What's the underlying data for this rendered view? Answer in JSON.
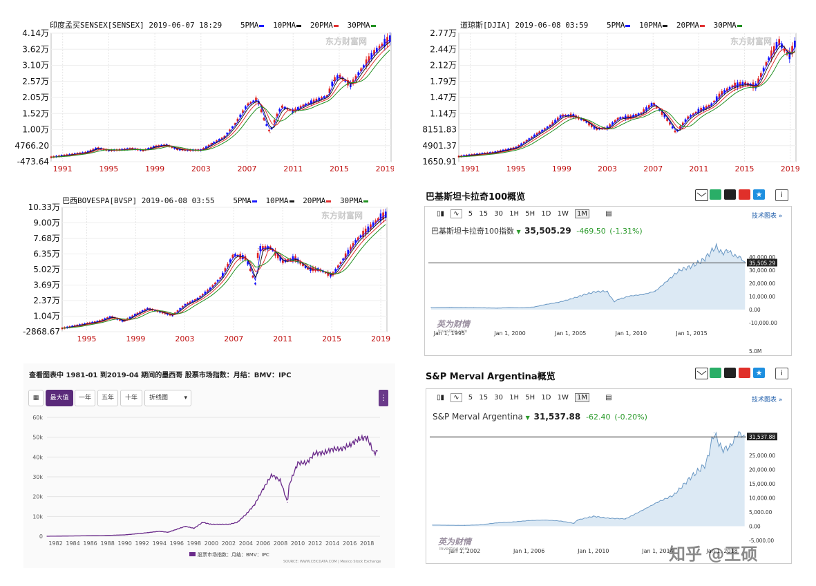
{
  "colors": {
    "ma5": "#1a1aff",
    "ma10": "#1a1a1a",
    "ma20": "#e03030",
    "ma30": "#209020",
    "up": "#e02020",
    "down": "#1010ff",
    "investing_line": "#6a98c4",
    "investing_fill": "#dce9f4",
    "mexico_line": "#6a2a8a",
    "accent_purple": "#6a3a8a"
  },
  "ma_labels": [
    "5PMA",
    "10PMA",
    "20PMA",
    "30PMA"
  ],
  "eastmoney_watermark": "东方财富网",
  "investing_toolbar": [
    "5",
    "15",
    "30",
    "1H",
    "5H",
    "1D",
    "1W",
    "1M"
  ],
  "investing_link": "技术图表 »",
  "investing_watermark": "英为财情",
  "investing_watermark_sub": "Investing.com",
  "zhihu_watermark": "知乎 @王硕",
  "chart_data": [
    {
      "id": "sensex",
      "type": "line",
      "title": "印度孟买SENSEX[SENSEX]  2019-06-07 18:29",
      "yticks": [
        "4.14万",
        "3.62万",
        "3.10万",
        "2.57万",
        "2.05万",
        "1.52万",
        "1.00万",
        "4766.20",
        "-473.64"
      ],
      "ylim": [
        -473.64,
        41400
      ],
      "xticks": [
        "1991",
        "1995",
        "1999",
        "2003",
        "2007",
        "2011",
        "2015",
        "2019"
      ],
      "xlim": [
        1990,
        2019.5
      ],
      "x": [
        1990,
        1992,
        1993,
        1994,
        1995,
        1996,
        1997,
        1998,
        1999,
        2000,
        2001,
        2002,
        2003,
        2004,
        2005,
        2006,
        2007,
        2007.9,
        2008.5,
        2009,
        2009.5,
        2010,
        2011,
        2012,
        2013,
        2014,
        2014.5,
        2015,
        2016,
        2017,
        2018,
        2019,
        2019.4
      ],
      "values": [
        1000,
        2000,
        2500,
        4000,
        3200,
        3400,
        3800,
        3200,
        4500,
        5000,
        3500,
        3300,
        3300,
        5500,
        7500,
        12000,
        18000,
        20000,
        13000,
        9000,
        14000,
        17500,
        16000,
        18000,
        19500,
        21000,
        26000,
        27500,
        24500,
        30000,
        35000,
        38500,
        39600
      ]
    },
    {
      "id": "djia",
      "type": "line",
      "title": "道琼斯[DJIA]  2019-06-08 03:59",
      "yticks": [
        "2.77万",
        "2.44万",
        "2.12万",
        "1.79万",
        "1.47万",
        "1.14万",
        "8151.83",
        "4901.37",
        "1650.91"
      ],
      "ylim": [
        1650.91,
        27700
      ],
      "xticks": [
        "1991",
        "1995",
        "1999",
        "2003",
        "2007",
        "2011",
        "2015",
        "2019"
      ],
      "xlim": [
        1990,
        2019.5
      ],
      "x": [
        1990,
        1991,
        1993,
        1995,
        1996,
        1997,
        1998,
        1999,
        2000,
        2001,
        2002,
        2003,
        2004,
        2005,
        2006,
        2007,
        2008,
        2009,
        2010,
        2011,
        2012,
        2013,
        2014,
        2015,
        2016,
        2017,
        2018,
        2018.9,
        2019.4
      ],
      "values": [
        2700,
        3000,
        3500,
        4500,
        6000,
        7500,
        9000,
        11000,
        11000,
        10000,
        8300,
        8500,
        10500,
        10700,
        11500,
        13500,
        11000,
        7500,
        10500,
        12000,
        13000,
        15500,
        17000,
        17500,
        17000,
        22000,
        26000,
        23000,
        25500
      ]
    },
    {
      "id": "bovespa",
      "type": "line",
      "title": "巴西BOVESPA[BVSP]  2019-06-08 03:55",
      "yticks": [
        "10.33万",
        "9.00万",
        "7.68万",
        "6.35万",
        "5.02万",
        "3.69万",
        "2.37万",
        "1.04万",
        "-2868.67"
      ],
      "ylim": [
        -2868.67,
        103300
      ],
      "xticks": [
        "1995",
        "1999",
        "2003",
        "2007",
        "2011",
        "2015",
        "2019"
      ],
      "xlim": [
        1993,
        2019.5
      ],
      "x": [
        1993,
        1995,
        1996,
        1997,
        1998,
        1999,
        2000,
        2001,
        2002,
        2003,
        2004,
        2005,
        2006,
        2007,
        2008,
        2008.8,
        2009,
        2010,
        2011,
        2012,
        2013,
        2014,
        2015,
        2016,
        2017,
        2018,
        2019,
        2019.4
      ],
      "values": [
        0,
        4000,
        6000,
        10000,
        6000,
        12000,
        17000,
        14000,
        11000,
        20000,
        25000,
        33000,
        44000,
        63000,
        60000,
        37000,
        68000,
        69000,
        57000,
        60000,
        51000,
        50000,
        45000,
        60000,
        75000,
        85000,
        95000,
        97000
      ]
    },
    {
      "id": "kse100",
      "type": "area",
      "title": "巴基斯坦卡拉奇100指数",
      "price": "35,505.29",
      "change": "-469.50",
      "change_pct": "(-1.31%)",
      "last_label": "35,505.29",
      "yticks": [
        "40,000.00",
        "30,000.00",
        "20,000.00",
        "10,000.00",
        "0.00",
        "-10,000.00"
      ],
      "vol_label": "5.0M",
      "ylim": [
        -10000,
        50000
      ],
      "xticks": [
        "Jan 1, 1995",
        "Jan 1, 2000",
        "Jan 1, 2005",
        "Jan 1, 2010",
        "Jan 1, 2015"
      ],
      "xlim": [
        1993.5,
        2019.5
      ],
      "x": [
        1993.5,
        1995,
        1997,
        1999,
        2000,
        2001,
        2002,
        2003,
        2004,
        2005,
        2006,
        2007,
        2008,
        2008.6,
        2009,
        2010,
        2011,
        2012,
        2013,
        2014,
        2015,
        2016,
        2017,
        2017.5,
        2018,
        2018.5,
        2019,
        2019.4
      ],
      "values": [
        1500,
        1800,
        1500,
        1100,
        1600,
        1300,
        2000,
        4000,
        5500,
        8000,
        11000,
        13500,
        14000,
        6000,
        8000,
        10500,
        11500,
        14000,
        22000,
        30000,
        33000,
        38000,
        48000,
        43000,
        45000,
        41000,
        40000,
        35505
      ]
    },
    {
      "id": "mexico",
      "type": "line",
      "title": "查看图表中 1981-01 到2019-04 期间的墨西哥 股票市场指数：月结：BMV：IPC",
      "yticks": [
        "60k",
        "50k",
        "40k",
        "30k",
        "20k",
        "10k",
        "0"
      ],
      "ylim": [
        0,
        60000
      ],
      "xticks": [
        "1982",
        "1984",
        "1986",
        "1988",
        "1990",
        "1992",
        "1994",
        "1996",
        "1998",
        "2000",
        "2002",
        "2004",
        "2006",
        "2008",
        "2010",
        "2012",
        "2014",
        "2016",
        "2018"
      ],
      "xlim": [
        1981,
        2019.5
      ],
      "x": [
        1981,
        1987,
        1990,
        1992,
        1994,
        1995,
        1997,
        1998,
        1999,
        2000,
        2001,
        2002,
        2003,
        2004,
        2005,
        2006,
        2007,
        2008,
        2008.8,
        2009,
        2010,
        2011,
        2012,
        2013,
        2014,
        2015,
        2016,
        2017,
        2018,
        2018.8,
        2019.2
      ],
      "values": [
        0,
        300,
        700,
        1500,
        2500,
        2000,
        5000,
        4000,
        7000,
        6000,
        6000,
        6000,
        7000,
        11000,
        16000,
        24000,
        31000,
        28000,
        17000,
        26000,
        37000,
        37000,
        42000,
        42000,
        44000,
        44000,
        46000,
        49000,
        50000,
        42000,
        43000
      ],
      "buttons": [
        "最大值",
        "一年",
        "五年",
        "十年"
      ],
      "dropdown": "折线图",
      "legend": "股票市场指数：月结：BMV：IPC",
      "source": "SOURCE: WWW.CEICDATA.COM | Mexico Stock Exchange"
    },
    {
      "id": "merval",
      "type": "area",
      "title": "S&P Merval Argentina概览",
      "index_name": "S&P Merval Argentina",
      "price": "31,537.88",
      "change": "-62.40",
      "change_pct": "(-0.20%)",
      "last_label": "31,537.88",
      "yticks": [
        "25,000.00",
        "20,000.00",
        "15,000.00",
        "10,000.00",
        "5,000.00",
        "0.00",
        "-5,000.00"
      ],
      "ylim": [
        -5000,
        35000
      ],
      "xticks": [
        "Jan 1, 2002",
        "Jan 1, 2006",
        "Jan 1, 2010",
        "Jan 1, 2014",
        "Jan 1, 2018"
      ],
      "xlim": [
        2000,
        2019.5
      ],
      "x": [
        2000,
        2002,
        2003,
        2004,
        2005,
        2006,
        2007,
        2008,
        2008.8,
        2009,
        2010,
        2011,
        2012,
        2013,
        2014,
        2015,
        2016,
        2017,
        2017.5,
        2018,
        2018.5,
        2019,
        2019.4
      ],
      "values": [
        400,
        300,
        500,
        1200,
        1500,
        2000,
        2200,
        1800,
        1000,
        2200,
        3500,
        2800,
        2600,
        5500,
        8500,
        11000,
        17000,
        22000,
        33000,
        27000,
        28000,
        33000,
        31537
      ]
    }
  ],
  "investing_header": "巴基斯坦卡拉奇100概览",
  "investing_index_name": "巴基斯坦卡拉奇100指数"
}
